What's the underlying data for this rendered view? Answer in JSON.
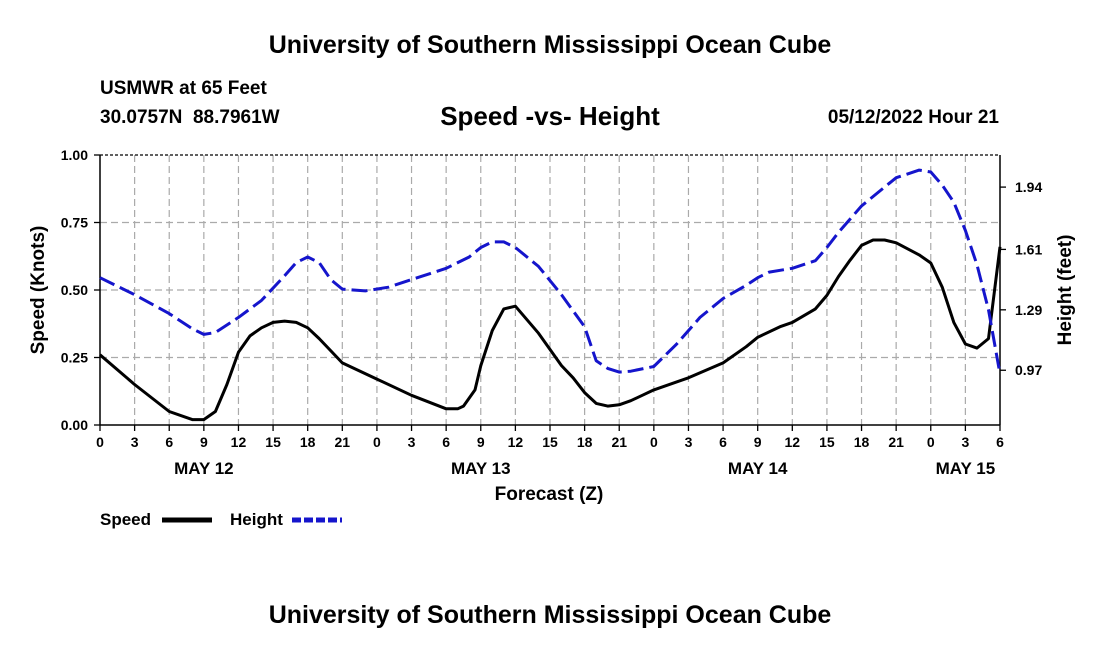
{
  "header": {
    "title": "University of Southern Mississippi Ocean Cube",
    "station": "USMWR at 65 Feet",
    "coords": "30.0757N  88.7961W",
    "timestamp": "05/12/2022 Hour 21"
  },
  "footer": {
    "title": "University of Southern Mississippi Ocean Cube"
  },
  "colors": {
    "speed": "#000000",
    "height": "#1515cc",
    "grid": "#aaaaaa"
  },
  "chart_data": {
    "type": "line",
    "title": "Speed -vs- Height",
    "xlabel": "Forecast (Z)",
    "ylabel": "Speed (Knots)",
    "y2label": "Height (feet)",
    "xlim": [
      0,
      78
    ],
    "ylim": [
      0,
      1.0
    ],
    "y2lim": [
      0.68,
      2.11
    ],
    "yticks": [
      "0.00",
      "0.25",
      "0.50",
      "0.75",
      "1.00"
    ],
    "y2ticks": [
      "0.97",
      "1.29",
      "1.61",
      "1.94"
    ],
    "xtick_labels": [
      "0",
      "3",
      "6",
      "9",
      "12",
      "15",
      "18",
      "21",
      "0",
      "3",
      "6",
      "9",
      "12",
      "15",
      "18",
      "21",
      "0",
      "3",
      "6",
      "9",
      "12",
      "15",
      "18",
      "21",
      "0",
      "3",
      "6"
    ],
    "date_labels": [
      {
        "hour": 9,
        "label": "MAY 12"
      },
      {
        "hour": 33,
        "label": "MAY 13"
      },
      {
        "hour": 57,
        "label": "MAY 14"
      },
      {
        "hour": 75,
        "label": "MAY 15"
      }
    ],
    "legend": [
      {
        "name": "Speed",
        "style": "solid"
      },
      {
        "name": "Height",
        "style": "dashed"
      }
    ],
    "series": [
      {
        "name": "Speed",
        "axis": "left",
        "x": [
          0,
          3,
          6,
          8,
          9,
          10,
          11,
          12,
          13,
          14,
          15,
          16,
          17,
          18,
          19,
          21,
          24,
          27,
          30,
          31,
          31.5,
          32.5,
          33,
          34,
          35,
          36,
          38,
          40,
          41,
          42,
          43,
          44,
          45,
          46,
          47,
          48,
          51,
          54,
          56,
          57,
          59,
          60,
          62,
          63,
          64,
          65,
          66,
          67,
          68,
          69,
          71,
          72,
          73,
          74,
          75,
          76,
          77,
          78
        ],
        "y": [
          0.26,
          0.15,
          0.05,
          0.02,
          0.02,
          0.05,
          0.15,
          0.27,
          0.33,
          0.36,
          0.38,
          0.385,
          0.38,
          0.36,
          0.32,
          0.23,
          0.17,
          0.11,
          0.06,
          0.06,
          0.07,
          0.13,
          0.22,
          0.35,
          0.43,
          0.44,
          0.34,
          0.22,
          0.175,
          0.12,
          0.08,
          0.07,
          0.075,
          0.09,
          0.11,
          0.13,
          0.175,
          0.23,
          0.29,
          0.325,
          0.365,
          0.38,
          0.43,
          0.48,
          0.55,
          0.61,
          0.665,
          0.685,
          0.685,
          0.675,
          0.63,
          0.6,
          0.51,
          0.38,
          0.3,
          0.285,
          0.32,
          0.66
        ]
      },
      {
        "name": "Height",
        "axis": "right",
        "x": [
          0,
          3,
          6,
          8,
          9,
          10,
          12,
          14,
          16,
          17,
          18,
          19,
          20,
          21,
          23,
          25,
          27,
          30,
          32,
          33,
          34,
          35,
          36,
          38,
          40,
          42,
          43,
          44,
          45,
          46,
          48,
          50,
          52,
          54,
          56,
          57,
          58,
          60,
          62,
          63,
          64,
          66,
          68,
          69,
          70,
          71,
          72,
          73,
          74,
          75,
          76,
          77,
          78
        ],
        "y": [
          1.46,
          1.37,
          1.27,
          1.19,
          1.16,
          1.17,
          1.25,
          1.34,
          1.47,
          1.54,
          1.57,
          1.54,
          1.45,
          1.4,
          1.39,
          1.41,
          1.45,
          1.51,
          1.57,
          1.62,
          1.65,
          1.65,
          1.62,
          1.52,
          1.37,
          1.2,
          1.02,
          0.98,
          0.96,
          0.965,
          0.99,
          1.11,
          1.25,
          1.35,
          1.42,
          1.46,
          1.49,
          1.51,
          1.55,
          1.62,
          1.7,
          1.84,
          1.94,
          1.99,
          2.01,
          2.03,
          2.02,
          1.95,
          1.86,
          1.71,
          1.53,
          1.29,
          0.95
        ]
      }
    ]
  }
}
